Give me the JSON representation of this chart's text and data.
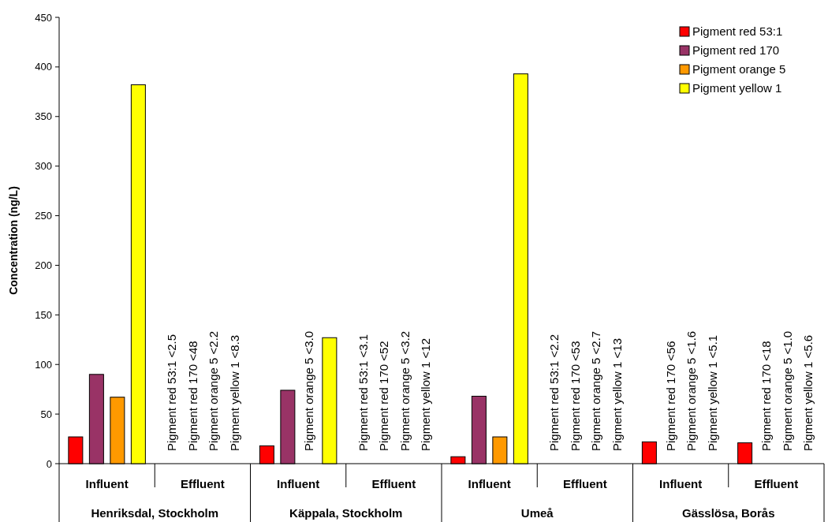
{
  "chart_data": {
    "type": "bar",
    "ylabel": "Concentration (ng/L)",
    "categories": [
      "Influent",
      "Effluent",
      "Influent",
      "Effluent",
      "Influent",
      "Effluent",
      "Influent",
      "Effluent"
    ],
    "series": [
      {
        "name": "Pigment red 53:1",
        "color": "#ff0000",
        "values": [
          27,
          null,
          18,
          null,
          7,
          null,
          22,
          21
        ]
      },
      {
        "name": "Pigment red 170",
        "color": "#993366",
        "values": [
          90,
          null,
          74,
          null,
          68,
          null,
          null,
          null
        ]
      },
      {
        "name": "Pigment orange 5",
        "color": "#ff9900",
        "values": [
          67,
          null,
          null,
          null,
          27,
          null,
          null,
          null
        ]
      },
      {
        "name": "Pigment yellow 1",
        "color": "#ffff00",
        "values": [
          382,
          null,
          127,
          null,
          393,
          null,
          null,
          null
        ]
      }
    ],
    "ylim": [
      0,
      450
    ],
    "yticks": [
      0,
      50,
      100,
      150,
      200,
      250,
      300,
      350,
      400,
      450
    ],
    "grid": false,
    "legend": "top right",
    "annotations": [
      "Henriksdal, Stockholm",
      "Käppala, Stockholm",
      "Umeå",
      "Gässlösa, Borås",
      "Pigment red 53:1 <2.5",
      "Pigment red 170 <48",
      "Pigment orange 5 <2.2",
      "Pigment yellow 1 <8.3",
      "Pigment orange 5 <3.0",
      "Pigment red 53:1 <3.1",
      "Pigment red 170 <52",
      "Pigment orange 5 <3.2",
      "Pigment yellow 1 <12",
      "Pigment red 53:1 <2.2",
      "Pigment red 170 <53",
      "Pigment orange 5 <2.7",
      "Pigment yellow 1 <13",
      "Pigment red 170 <56",
      "Pigment orange 5 <1.6",
      "Pigment yellow 1 <5.1",
      "Pigment red 170 <18",
      "Pigment orange 5 <1.0",
      "Pigment yellow 1 <5.6"
    ]
  }
}
